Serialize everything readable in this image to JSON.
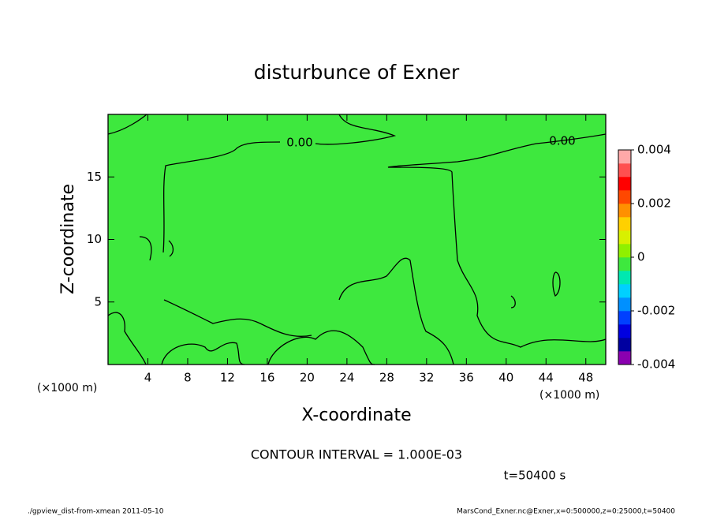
{
  "chart_data": {
    "type": "contour",
    "title": "disturbunce of Exner",
    "xlabel": "X-coordinate",
    "ylabel": "Z-coordinate",
    "xunit": "(×1000 m)",
    "yunit": "(×1000 m)",
    "xlim": [
      0,
      50
    ],
    "xticks": [
      4,
      8,
      12,
      16,
      20,
      24,
      28,
      32,
      36,
      40,
      44,
      48
    ],
    "ylim": [
      0,
      20
    ],
    "yticks": [
      5,
      10,
      15
    ],
    "fill_color": "#3ee83e",
    "line_color": "#000000",
    "contour_labels": [
      "0.00",
      "0.00"
    ],
    "colorbar": {
      "lim": [
        -0.004,
        0.004
      ],
      "ticks": [
        0.004,
        0.002,
        0,
        -0.002,
        -0.004
      ],
      "colors": [
        "#8a00b0",
        "#0000a0",
        "#0000e0",
        "#0040ff",
        "#0090ff",
        "#00d0ff",
        "#00e8b0",
        "#3ee83e",
        "#90f000",
        "#d8f000",
        "#ffd000",
        "#ff9000",
        "#ff4800",
        "#ff0000",
        "#ff5050",
        "#ffa8a8"
      ]
    },
    "annotation": "CONTOUR INTERVAL = 1.000E-03",
    "time_label": "t=50400 s",
    "footer_left": "./gpview_dist-from-xmean  2011-05-10",
    "footer_right": "MarsCond_Exner.nc@Exner,x=0:500000,z=0:25000,t=50400"
  }
}
